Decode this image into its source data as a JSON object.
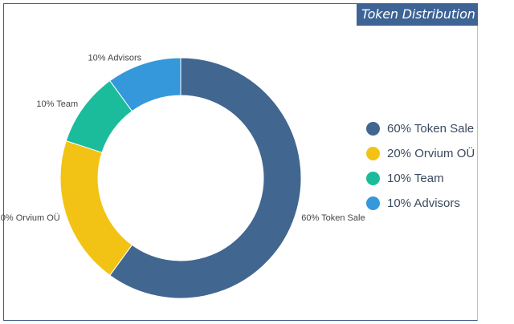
{
  "title": "Token Distribution",
  "colors": {
    "token_sale": "#416690",
    "orvium": "#f2c314",
    "team": "#1abc9c",
    "advisors": "#3498db"
  },
  "chart_data": {
    "type": "pie",
    "title": "Token Distribution",
    "donut": true,
    "legend_position": "right",
    "slices": [
      {
        "label": "60% Token Sale",
        "value": 60,
        "color": "#416690"
      },
      {
        "label": "20% Orvium OÜ",
        "value": 20,
        "color": "#f2c314"
      },
      {
        "label": "10% Team",
        "value": 10,
        "color": "#1abc9c"
      },
      {
        "label": "10% Advisors",
        "value": 10,
        "color": "#3498db"
      }
    ]
  }
}
